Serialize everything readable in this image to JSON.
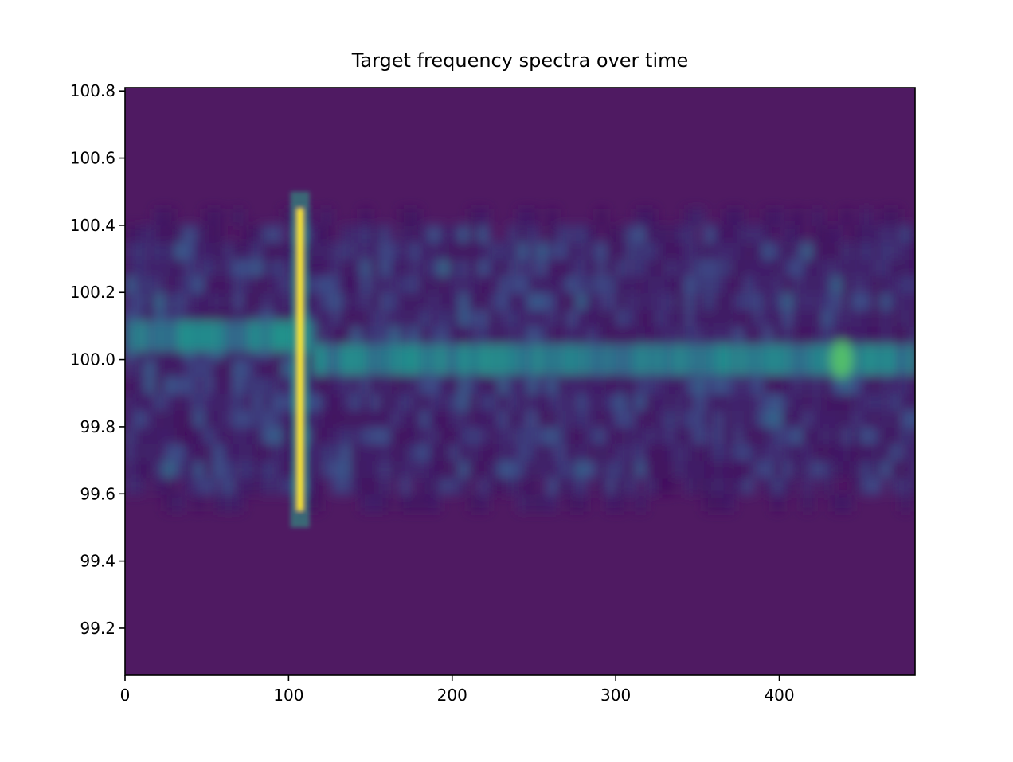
{
  "chart_data": {
    "type": "heatmap",
    "title": "Target frequency spectra over time",
    "xlabel": "",
    "ylabel": "",
    "xlim": [
      0,
      483
    ],
    "ylim": [
      99.06,
      100.81
    ],
    "x_ticks": [
      0,
      100,
      200,
      300,
      400
    ],
    "y_ticks": [
      99.2,
      99.4,
      99.6,
      99.8,
      100.0,
      100.2,
      100.4,
      100.6,
      100.8
    ],
    "x_tick_labels": [
      "0",
      "100",
      "200",
      "300",
      "400"
    ],
    "y_tick_labels": [
      "99.2",
      "99.4",
      "99.6",
      "99.8",
      "100.0",
      "100.2",
      "100.4",
      "100.6",
      "100.8"
    ],
    "colormap": "viridis",
    "background_color": "#4f1a62",
    "grid": false,
    "legend": "none",
    "features": [
      {
        "feature": "continuous band",
        "x_range": [
          0,
          483
        ],
        "y_range": [
          99.5,
          100.45
        ]
      },
      {
        "feature": "center line (early)",
        "x_range": [
          0,
          115
        ],
        "y_center": 100.07,
        "intensity": 0.45
      },
      {
        "feature": "center line (late)",
        "x_range": [
          115,
          483
        ],
        "y_center": 100.0,
        "intensity": 0.45
      },
      {
        "feature": "vertical burst",
        "x_center": 107,
        "y_range": [
          99.55,
          100.45
        ],
        "intensity": 1.0
      },
      {
        "feature": "bright spot",
        "x": 438,
        "y": 100.0,
        "intensity": 0.7
      }
    ]
  }
}
